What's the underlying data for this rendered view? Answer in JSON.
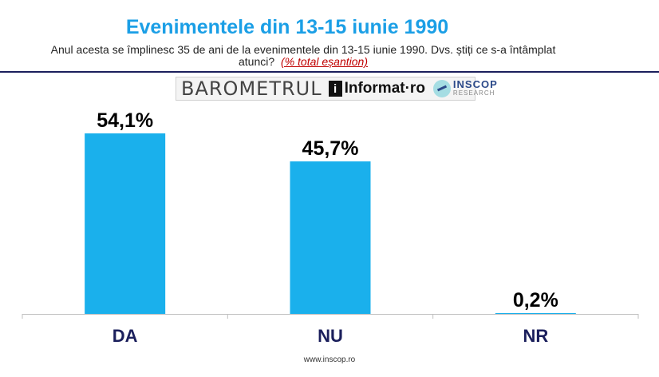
{
  "header": {
    "title": "Evenimentele din 13-15 iunie 1990",
    "subtitle_line1": "Anul acesta se împlinesc 35 de ani de la evenimentele din 13-15 iunie 1990. Dvs. știți ce s-a întâmplat",
    "subtitle_line2": "atunci?",
    "sample_note": "(% total eșantion)"
  },
  "logos": {
    "barometrul": "BAROMETRUL",
    "informat": "Informat·ro",
    "inscop_main": "INSCOP",
    "inscop_sub": "RESEARCH"
  },
  "footer": {
    "url": "www.inscop.ro"
  },
  "colors": {
    "bar": "#1ab0ec",
    "title": "#1b9fe6",
    "rule": "#1b1f5c",
    "note": "#c00000"
  },
  "chart_data": {
    "type": "bar",
    "categories": [
      "DA",
      "NU",
      "NR"
    ],
    "values": [
      54.1,
      45.7,
      0.2
    ],
    "value_labels": [
      "54,1%",
      "45,7%",
      "0,2%"
    ],
    "ylim": [
      0,
      60
    ],
    "grid": false,
    "legend": "none"
  }
}
